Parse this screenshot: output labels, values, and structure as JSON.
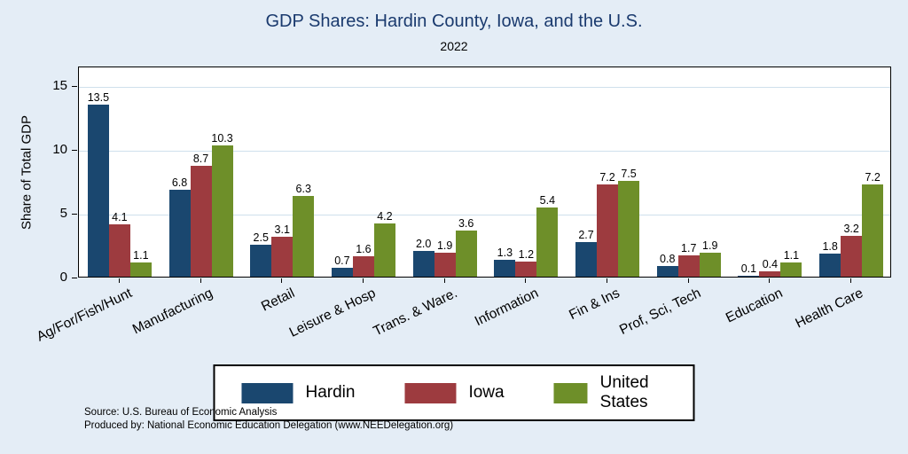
{
  "title": "GDP Shares: Hardin County, Iowa, and the U.S.",
  "subtitle": "2022",
  "ylabel": "Share of Total GDP",
  "source": {
    "line1": "Source: U.S. Bureau of Economic Analysis",
    "line2": "Produced by: National Economic Education Delegation (www.NEEDelegation.org)"
  },
  "colors": {
    "background": "#e4edf6",
    "title_text": "#1a3a6e",
    "gridline": "#cfe0ec",
    "hardin": "#1a476f",
    "iowa": "#9d3b3f",
    "united_states": "#6e8f29"
  },
  "chart_data": {
    "type": "bar",
    "title": "GDP Shares: Hardin County, Iowa, and the U.S.",
    "subtitle": "2022",
    "xlabel": "",
    "ylabel": "Share of Total GDP",
    "yticks": [
      0,
      5,
      10,
      15
    ],
    "ylim": [
      0,
      16.5
    ],
    "grid": true,
    "legend_position": "bottom",
    "categories": [
      "Ag/For/Fish/Hunt",
      "Manufacturing",
      "Retail",
      "Leisure & Hosp",
      "Trans. & Ware.",
      "Information",
      "Fin & Ins",
      "Prof, Sci, Tech",
      "Education",
      "Health Care"
    ],
    "series": [
      {
        "name": "Hardin",
        "color": "#1a476f",
        "values": [
          13.5,
          6.8,
          2.5,
          0.7,
          2.0,
          1.3,
          2.7,
          0.8,
          0.1,
          1.8
        ]
      },
      {
        "name": "Iowa",
        "color": "#9d3b3f",
        "values": [
          4.1,
          8.7,
          3.1,
          1.6,
          1.9,
          1.2,
          7.2,
          1.7,
          0.4,
          3.2
        ]
      },
      {
        "name": "United States",
        "color": "#6e8f29",
        "values": [
          1.1,
          10.3,
          6.3,
          4.2,
          3.6,
          5.4,
          7.5,
          1.9,
          1.1,
          7.2
        ]
      }
    ]
  }
}
